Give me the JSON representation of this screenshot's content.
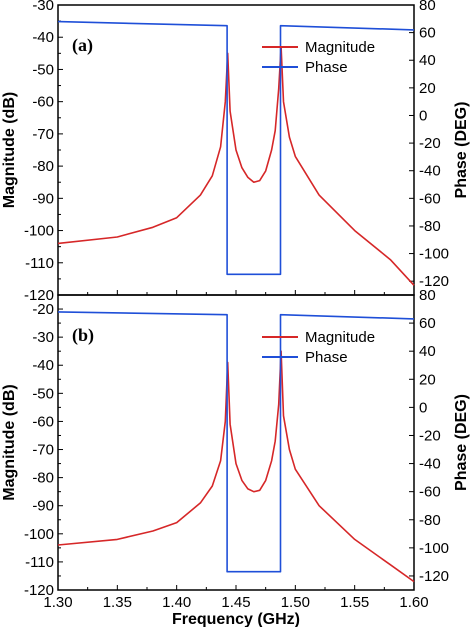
{
  "chart_data": [
    {
      "type": "line",
      "panel_label": "(a)",
      "xlabel": "Frequency (GHz)",
      "ylabel": "Magnitude (dB)",
      "ylabel_right": "Phase (DEG)",
      "xlim": [
        1.3,
        1.6
      ],
      "ylim": [
        -120,
        -30
      ],
      "ylim_right": [
        -130,
        80
      ],
      "yticks": [
        -120,
        -110,
        -100,
        -90,
        -80,
        -70,
        -60,
        -50,
        -40,
        -30
      ],
      "yticks_right": [
        -120,
        -100,
        -80,
        -60,
        -40,
        -20,
        0,
        20,
        40,
        60,
        80
      ],
      "legend": "top-right",
      "series": [
        {
          "name": "Magnitude",
          "axis": "left",
          "color": "#d62728",
          "x": [
            1.3,
            1.35,
            1.38,
            1.4,
            1.42,
            1.43,
            1.437,
            1.441,
            1.443,
            1.445,
            1.45,
            1.455,
            1.46,
            1.465,
            1.47,
            1.475,
            1.48,
            1.483,
            1.486,
            1.488,
            1.49,
            1.495,
            1.5,
            1.52,
            1.55,
            1.58,
            1.6
          ],
          "values": [
            -104,
            -102,
            -99,
            -96,
            -89,
            -83,
            -74,
            -60,
            -45,
            -63,
            -75,
            -80.5,
            -83.5,
            -85,
            -84.5,
            -81.5,
            -75,
            -69,
            -56,
            -43,
            -60,
            -71,
            -77,
            -89,
            -100,
            -109,
            -117
          ]
        },
        {
          "name": "Phase",
          "axis": "right",
          "color": "#1f4fd8",
          "x": [
            1.3,
            1.4425,
            1.4425,
            1.4875,
            1.4875,
            1.6
          ],
          "values": [
            68,
            65,
            -115,
            -115,
            65,
            62
          ]
        }
      ]
    },
    {
      "type": "line",
      "panel_label": "(b)",
      "xlabel": "Frequency (GHz)",
      "ylabel": "Magnitude (dB)",
      "ylabel_right": "Phase (DEG)",
      "xlim": [
        1.3,
        1.6
      ],
      "ylim": [
        -120,
        -15
      ],
      "ylim_right": [
        -130,
        80
      ],
      "yticks": [
        -120,
        -110,
        -100,
        -90,
        -80,
        -70,
        -60,
        -50,
        -40,
        -30,
        -20
      ],
      "yticks_right": [
        -120,
        -100,
        -80,
        -60,
        -40,
        -20,
        0,
        20,
        40,
        60,
        80
      ],
      "xticks": [
        "1.30",
        "1.35",
        "1.40",
        "1.45",
        "1.50",
        "1.55",
        "1.60"
      ],
      "legend": "top-right",
      "series": [
        {
          "name": "Magnitude",
          "axis": "left",
          "color": "#d62728",
          "x": [
            1.3,
            1.35,
            1.38,
            1.4,
            1.42,
            1.43,
            1.437,
            1.441,
            1.443,
            1.445,
            1.45,
            1.455,
            1.46,
            1.465,
            1.47,
            1.475,
            1.48,
            1.483,
            1.486,
            1.488,
            1.49,
            1.495,
            1.5,
            1.52,
            1.55,
            1.58,
            1.6
          ],
          "values": [
            -104,
            -102,
            -99,
            -96,
            -89,
            -83,
            -74,
            -60,
            -39,
            -61,
            -75,
            -81,
            -84,
            -85,
            -84.5,
            -81,
            -74,
            -67,
            -54,
            -35,
            -58,
            -70,
            -77,
            -90,
            -102,
            -111,
            -117
          ]
        },
        {
          "name": "Phase",
          "axis": "right",
          "color": "#1f4fd8",
          "x": [
            1.3,
            1.4425,
            1.4425,
            1.4875,
            1.4875,
            1.6
          ],
          "values": [
            68,
            66,
            -117,
            -117,
            66,
            63
          ]
        }
      ]
    }
  ]
}
